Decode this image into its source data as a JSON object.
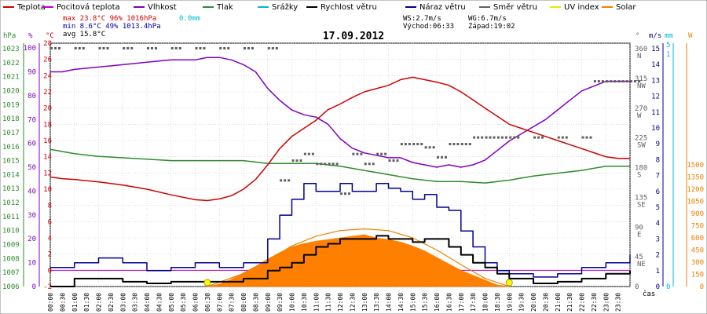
{
  "chart_data": {
    "type": "line",
    "title": "17.09.2012",
    "legend": [
      {
        "label": "Teplota",
        "color": "#d00000"
      },
      {
        "label": "Pocitová teplota",
        "color": "#c000c0"
      },
      {
        "label": "Vlhkost",
        "color": "#8000c0"
      },
      {
        "label": "Tlak",
        "color": "#2e8b2e"
      },
      {
        "label": "Srážky",
        "color": "#00b8d8"
      },
      {
        "label": "Rychlost větru",
        "color": "#000000"
      },
      {
        "label": "Náraz větru",
        "color": "#000090"
      },
      {
        "label": "Směr větru",
        "color": "#606060"
      },
      {
        "label": "UV index",
        "color": "#e8e800"
      },
      {
        "label": "Solar",
        "color": "#f08000"
      }
    ],
    "stats": {
      "max_line": "max 23.8°C  96%  1016hPa",
      "min_line": "min  8.6°C  49%  1013.4hPa",
      "avg_line": "avg 15.8°C",
      "rain": "0.0mm",
      "ws": "WS:2.7m/s",
      "wg": "WG:6.7m/s",
      "sunrise": "Východ:06:33",
      "sunset": "Západ:19:02"
    },
    "axes": {
      "hpa_label": "hPa",
      "pct_label": "%",
      "temp_label": "°C",
      "dir_label": "°",
      "ms_label": "m/s",
      "mm_label": "mm",
      "w_label": "W",
      "xlabel": "čas",
      "hpa_ticks": [
        "1023",
        "1022",
        "1021",
        "1020",
        "1019",
        "1018",
        "1017",
        "1016",
        "1015",
        "1014",
        "1013",
        "1012",
        "1011",
        "1010",
        "1009",
        "1008",
        "1007",
        "1006"
      ],
      "pct_ticks": [
        "100",
        "90",
        "80",
        "70",
        "60",
        "50",
        "40",
        "30",
        "20",
        "10",
        "0"
      ],
      "temp_ticks": [
        "28",
        "26",
        "24",
        "22",
        "20",
        "18",
        "16",
        "14",
        "12",
        "10",
        "8",
        "6",
        "4",
        "2",
        "0",
        "-2"
      ],
      "dir_ticks": [
        {
          "v": 360,
          "t": "360",
          "c": "N"
        },
        {
          "v": 315,
          "t": "315",
          "c": "NW"
        },
        {
          "v": 270,
          "t": "270",
          "c": "W"
        },
        {
          "v": 225,
          "t": "225",
          "c": "SW"
        },
        {
          "v": 180,
          "t": "180",
          "c": "S"
        },
        {
          "v": 135,
          "t": "135",
          "c": "SE"
        },
        {
          "v": 90,
          "t": "90",
          "c": "E"
        },
        {
          "v": 45,
          "t": "45",
          "c": "NE"
        },
        {
          "v": 0,
          "t": "0",
          "c": ""
        }
      ],
      "ms_ticks": [
        "15",
        "14",
        "13",
        "12",
        "11",
        "10",
        "9",
        "8",
        "7",
        "6",
        "5",
        "4",
        "3",
        "2",
        "1",
        "0"
      ],
      "mm_ticks": [
        "5",
        "1",
        "0"
      ],
      "w_ticks": [
        "1500",
        "1350",
        "1200",
        "1050",
        "900",
        "750",
        "600",
        "450",
        "300",
        "150",
        "0"
      ],
      "x_ticks": [
        "00:00",
        "00:30",
        "01:00",
        "01:30",
        "02:00",
        "02:30",
        "03:00",
        "03:30",
        "04:00",
        "04:30",
        "05:00",
        "05:30",
        "06:00",
        "06:30",
        "07:00",
        "07:30",
        "08:00",
        "08:30",
        "09:00",
        "09:30",
        "10:00",
        "10:30",
        "11:00",
        "11:30",
        "12:00",
        "12:30",
        "13:00",
        "13:30",
        "14:00",
        "14:30",
        "15:00",
        "15:30",
        "16:00",
        "16:30",
        "17:00",
        "17:30",
        "18:00",
        "18:30",
        "19:00",
        "19:30",
        "20:00",
        "20:30",
        "21:00",
        "21:30",
        "22:00",
        "22:30",
        "23:00",
        "23:30"
      ]
    },
    "temp_range": [
      -2,
      28
    ],
    "series": {
      "temp": [
        [
          0,
          11.5
        ],
        [
          0.5,
          11.3
        ],
        [
          1,
          11.2
        ],
        [
          2,
          10.9
        ],
        [
          3,
          10.5
        ],
        [
          4,
          10.0
        ],
        [
          5,
          9.3
        ],
        [
          6,
          8.7
        ],
        [
          6.5,
          8.6
        ],
        [
          7,
          8.8
        ],
        [
          7.5,
          9.2
        ],
        [
          8,
          10.0
        ],
        [
          8.5,
          11.2
        ],
        [
          9,
          13.0
        ],
        [
          9.5,
          15.0
        ],
        [
          10,
          16.5
        ],
        [
          10.5,
          17.5
        ],
        [
          11,
          18.5
        ],
        [
          11.5,
          19.8
        ],
        [
          12,
          20.5
        ],
        [
          12.5,
          21.3
        ],
        [
          13,
          22.0
        ],
        [
          14,
          22.8
        ],
        [
          14.5,
          23.5
        ],
        [
          15,
          23.8
        ],
        [
          15.5,
          23.5
        ],
        [
          16,
          23.2
        ],
        [
          16.5,
          22.8
        ],
        [
          17,
          22.0
        ],
        [
          17.5,
          21.0
        ],
        [
          18,
          20.0
        ],
        [
          18.5,
          19.0
        ],
        [
          19,
          18.0
        ],
        [
          19.5,
          17.5
        ],
        [
          20,
          17.0
        ],
        [
          20.5,
          16.5
        ],
        [
          21,
          16.0
        ],
        [
          21.5,
          15.5
        ],
        [
          22,
          15.0
        ],
        [
          22.5,
          14.5
        ],
        [
          23,
          14.0
        ],
        [
          23.5,
          13.8
        ],
        [
          24,
          13.8
        ]
      ],
      "humidity": [
        [
          0,
          90
        ],
        [
          0.5,
          90
        ],
        [
          1,
          91
        ],
        [
          2,
          92
        ],
        [
          3,
          93
        ],
        [
          4,
          94
        ],
        [
          5,
          95
        ],
        [
          6,
          95
        ],
        [
          6.5,
          96
        ],
        [
          7,
          96
        ],
        [
          7.5,
          95
        ],
        [
          8,
          93
        ],
        [
          8.5,
          90
        ],
        [
          9,
          83
        ],
        [
          9.5,
          78
        ],
        [
          10,
          74
        ],
        [
          10.5,
          72
        ],
        [
          11,
          71
        ],
        [
          11.5,
          68
        ],
        [
          12,
          62
        ],
        [
          12.5,
          58
        ],
        [
          13,
          56
        ],
        [
          13.5,
          55
        ],
        [
          14,
          54
        ],
        [
          14.5,
          54
        ],
        [
          15,
          52
        ],
        [
          15.5,
          51
        ],
        [
          16,
          50
        ],
        [
          16.5,
          51
        ],
        [
          17,
          50
        ],
        [
          17.5,
          51
        ],
        [
          18,
          53
        ],
        [
          18.5,
          57
        ],
        [
          19,
          61
        ],
        [
          19.5,
          64
        ],
        [
          20,
          67
        ],
        [
          20.5,
          70
        ],
        [
          21,
          74
        ],
        [
          21.5,
          78
        ],
        [
          22,
          82
        ],
        [
          22.5,
          84
        ],
        [
          23,
          86
        ],
        [
          23.5,
          86
        ],
        [
          24,
          86
        ]
      ],
      "pressure": [
        [
          0,
          1015.8
        ],
        [
          1,
          1015.5
        ],
        [
          2,
          1015.3
        ],
        [
          3,
          1015.2
        ],
        [
          4,
          1015.1
        ],
        [
          5,
          1015.0
        ],
        [
          6,
          1015.0
        ],
        [
          7,
          1015.0
        ],
        [
          8,
          1015.0
        ],
        [
          9,
          1014.8
        ],
        [
          10,
          1014.8
        ],
        [
          11,
          1014.8
        ],
        [
          12,
          1014.6
        ],
        [
          13,
          1014.3
        ],
        [
          14,
          1014.0
        ],
        [
          15,
          1013.7
        ],
        [
          16,
          1013.5
        ],
        [
          17,
          1013.5
        ],
        [
          18,
          1013.4
        ],
        [
          19,
          1013.6
        ],
        [
          20,
          1013.9
        ],
        [
          21,
          1014.1
        ],
        [
          22,
          1014.3
        ],
        [
          23,
          1014.6
        ],
        [
          24,
          1014.6
        ]
      ],
      "wind_speed": [
        [
          0,
          0
        ],
        [
          1,
          0.5
        ],
        [
          2,
          0.5
        ],
        [
          3,
          0.3
        ],
        [
          4,
          0.2
        ],
        [
          5,
          0.3
        ],
        [
          6,
          0.3
        ],
        [
          7,
          0.3
        ],
        [
          8,
          0.5
        ],
        [
          9,
          1.0
        ],
        [
          9.5,
          1.2
        ],
        [
          10,
          1.5
        ],
        [
          10.5,
          2.0
        ],
        [
          11,
          2.5
        ],
        [
          11.5,
          2.7
        ],
        [
          12,
          3.0
        ],
        [
          12.5,
          3.0
        ],
        [
          13,
          3.0
        ],
        [
          13.5,
          3.2
        ],
        [
          14,
          3.0
        ],
        [
          15,
          2.8
        ],
        [
          15.5,
          3.0
        ],
        [
          16,
          3.0
        ],
        [
          16.5,
          2.5
        ],
        [
          17,
          2.0
        ],
        [
          17.5,
          1.5
        ],
        [
          18,
          1.2
        ],
        [
          18.5,
          0.8
        ],
        [
          19,
          0.5
        ],
        [
          20,
          0.2
        ],
        [
          21,
          0.3
        ],
        [
          22,
          0.5
        ],
        [
          23,
          0.8
        ],
        [
          24,
          1.0
        ]
      ],
      "wind_gust": [
        [
          0,
          1.2
        ],
        [
          1,
          1.5
        ],
        [
          2,
          1.8
        ],
        [
          3,
          1.5
        ],
        [
          4,
          1.0
        ],
        [
          5,
          1.2
        ],
        [
          6,
          1.5
        ],
        [
          7,
          1.2
        ],
        [
          8,
          1.5
        ],
        [
          9,
          3.0
        ],
        [
          9.5,
          4.5
        ],
        [
          10,
          5.5
        ],
        [
          10.5,
          6.5
        ],
        [
          11,
          6.0
        ],
        [
          11.5,
          6.0
        ],
        [
          12,
          6.5
        ],
        [
          12.5,
          6.0
        ],
        [
          13,
          6.0
        ],
        [
          13.5,
          6.5
        ],
        [
          14,
          6.2
        ],
        [
          14.5,
          6.0
        ],
        [
          15,
          5.5
        ],
        [
          15.5,
          5.8
        ],
        [
          16,
          5.0
        ],
        [
          16.5,
          4.8
        ],
        [
          17,
          3.5
        ],
        [
          17.5,
          2.5
        ],
        [
          18,
          1.5
        ],
        [
          18.5,
          1.0
        ],
        [
          19,
          0.8
        ],
        [
          20,
          0.6
        ],
        [
          21,
          0.8
        ],
        [
          22,
          1.2
        ],
        [
          23,
          1.5
        ],
        [
          24,
          2.0
        ]
      ],
      "solar": [
        [
          6.5,
          0
        ],
        [
          7,
          30
        ],
        [
          7.5,
          90
        ],
        [
          8,
          170
        ],
        [
          8.5,
          250
        ],
        [
          9,
          340
        ],
        [
          9.5,
          420
        ],
        [
          10,
          490
        ],
        [
          10.5,
          530
        ],
        [
          11,
          560
        ],
        [
          11.5,
          580
        ],
        [
          12,
          600
        ],
        [
          12.5,
          620
        ],
        [
          13,
          640
        ],
        [
          13.5,
          600
        ],
        [
          14,
          580
        ],
        [
          14.5,
          550
        ],
        [
          15,
          500
        ],
        [
          15.5,
          440
        ],
        [
          16,
          360
        ],
        [
          16.5,
          280
        ],
        [
          17,
          200
        ],
        [
          17.5,
          140
        ],
        [
          18,
          80
        ],
        [
          18.5,
          20
        ],
        [
          19,
          0
        ]
      ],
      "solar_clear": [
        [
          6.5,
          0
        ],
        [
          8,
          160
        ],
        [
          9,
          320
        ],
        [
          10,
          500
        ],
        [
          11,
          620
        ],
        [
          12,
          690
        ],
        [
          13,
          710
        ],
        [
          14,
          690
        ],
        [
          15,
          600
        ],
        [
          16,
          450
        ],
        [
          17,
          270
        ],
        [
          18,
          100
        ],
        [
          19,
          0
        ]
      ],
      "wind_dir": [
        [
          0,
          360
        ],
        [
          1,
          360
        ],
        [
          2,
          360
        ],
        [
          3,
          360
        ],
        [
          4,
          360
        ],
        [
          5,
          360
        ],
        [
          6,
          360
        ],
        [
          7,
          360
        ],
        [
          8,
          360
        ],
        [
          9,
          360
        ],
        [
          9.5,
          160
        ],
        [
          10,
          190
        ],
        [
          10.5,
          200
        ],
        [
          11,
          185
        ],
        [
          11.5,
          185
        ],
        [
          12,
          140
        ],
        [
          12.5,
          200
        ],
        [
          13,
          185
        ],
        [
          13.5,
          200
        ],
        [
          14,
          190
        ],
        [
          14.5,
          215
        ],
        [
          15,
          215
        ],
        [
          15.5,
          210
        ],
        [
          16,
          195
        ],
        [
          16.5,
          215
        ],
        [
          17,
          215
        ],
        [
          17.5,
          225
        ],
        [
          18,
          225
        ],
        [
          18.5,
          225
        ],
        [
          19,
          225
        ],
        [
          20,
          225
        ],
        [
          21,
          225
        ],
        [
          22,
          225
        ],
        [
          22.5,
          310
        ],
        [
          23,
          310
        ],
        [
          23.5,
          310
        ],
        [
          24,
          310
        ]
      ],
      "uv_markers": [
        [
          6.5,
          0
        ],
        [
          19,
          0
        ]
      ]
    }
  }
}
